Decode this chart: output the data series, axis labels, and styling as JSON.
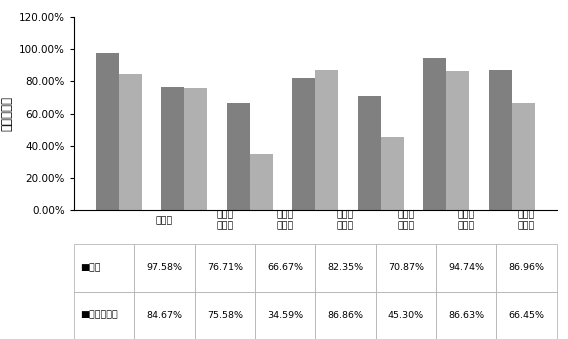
{
  "categories": [
    "空白组",
    "针管一\n实验组",
    "针管一\n对照组",
    "针管二\n实验组",
    "针管二\n对照组",
    "针管三\n实验组",
    "针管三\n对照组"
  ],
  "series": [
    {
      "name": "活率",
      "values": [
        97.58,
        76.71,
        66.67,
        82.35,
        70.87,
        94.74,
        86.96
      ],
      "color": "#808080"
    },
    {
      "name": "细胞完整率",
      "values": [
        84.67,
        75.58,
        34.59,
        86.86,
        45.3,
        86.63,
        66.45
      ],
      "color": "#b0b0b0"
    }
  ],
  "ylabel": "坐标轴标题",
  "ylim": [
    0,
    120
  ],
  "yticks": [
    0,
    20,
    40,
    60,
    80,
    100,
    120
  ],
  "ytick_labels": [
    "0.00%",
    "20.00%",
    "40.00%",
    "60.00%",
    "80.00%",
    "100.00%",
    "120.00%"
  ],
  "bar_width": 0.35,
  "table_rows": [
    {
      "label": "■活率",
      "values": [
        "97.58%",
        "76.71%",
        "66.67%",
        "82.35%",
        "70.87%",
        "94.74%",
        "86.96%"
      ]
    },
    {
      "label": "■细胞完整率",
      "values": [
        "84.67%",
        "75.58%",
        "34.59%",
        "86.86%",
        "45.30%",
        "86.63%",
        "66.45%"
      ]
    }
  ],
  "legend_colors": [
    "#808080",
    "#b0b0b0"
  ],
  "legend_names": [
    "活率",
    "细胞完整率"
  ]
}
